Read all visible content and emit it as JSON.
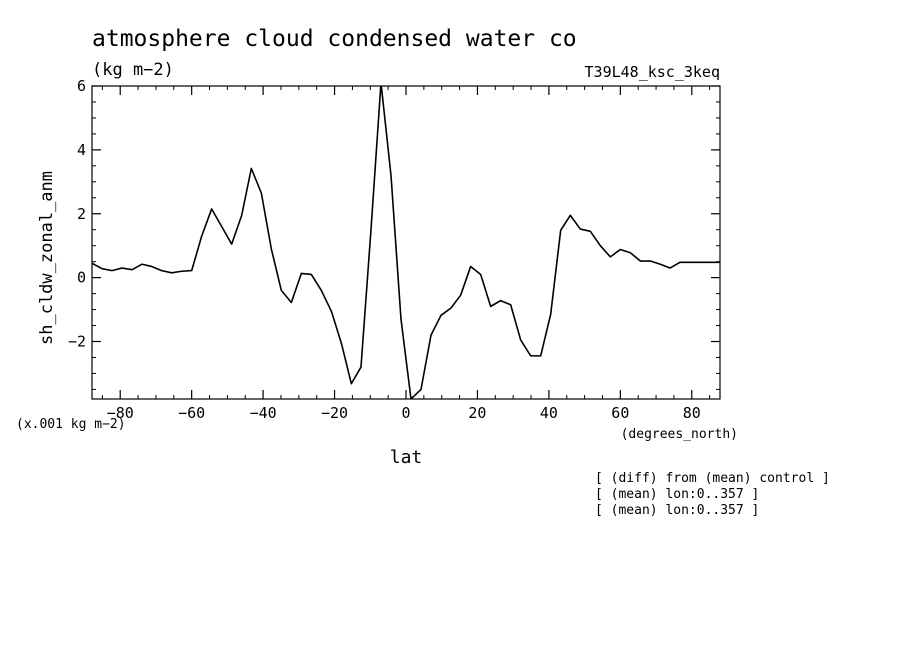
{
  "header": {
    "title": "atmosphere cloud condensed water co",
    "units": "(kg m−2)",
    "experiment": "T39L48_ksc_3keq"
  },
  "notes": [
    "[ (diff) from (mean) control ]",
    "[ (mean) lon:0..357 ]",
    "[ (mean) lon:0..357 ]"
  ],
  "chart_data": {
    "type": "line",
    "title": "atmosphere cloud condensed water co",
    "xlabel": "lat",
    "xunits": "(degrees_north)",
    "ylabel": "sh_cldw_zonal_anm",
    "yscale_note": "(x.001 kg m−2)",
    "xlim": [
      -87.9,
      87.9
    ],
    "ylim": [
      -3.8,
      6.0
    ],
    "xticks": [
      -80,
      -60,
      -40,
      -20,
      0,
      20,
      40,
      60,
      80
    ],
    "xtick_labels": [
      "−80",
      "−60",
      "−40",
      "−20",
      "0",
      "20",
      "40",
      "60",
      "80"
    ],
    "yticks": [
      -2,
      0,
      2,
      4,
      6
    ],
    "ytick_labels": [
      "−2",
      "0",
      "2",
      "4",
      "6"
    ],
    "grid": false,
    "series": [
      {
        "color": "#000000",
        "x": [
          -87.9,
          -85.1,
          -82.3,
          -79.5,
          -76.7,
          -73.9,
          -71.2,
          -68.4,
          -65.6,
          -62.8,
          -60.0,
          -57.2,
          -54.4,
          -51.6,
          -48.8,
          -46.0,
          -43.3,
          -40.5,
          -37.7,
          -34.9,
          -32.1,
          -29.3,
          -26.5,
          -23.7,
          -20.9,
          -18.1,
          -15.3,
          -12.6,
          -9.8,
          -7.0,
          -4.2,
          -1.4,
          1.4,
          4.2,
          7.0,
          9.8,
          12.6,
          15.3,
          18.1,
          20.9,
          23.7,
          26.5,
          29.3,
          32.1,
          34.9,
          37.7,
          40.5,
          43.3,
          46.0,
          48.8,
          51.6,
          54.4,
          57.2,
          60.0,
          62.8,
          65.6,
          68.4,
          71.2,
          73.9,
          76.7,
          79.5,
          82.3,
          85.1,
          87.9
        ],
        "y": [
          0.45,
          0.28,
          0.22,
          0.3,
          0.25,
          0.42,
          0.35,
          0.22,
          0.15,
          0.2,
          0.22,
          1.3,
          2.15,
          1.6,
          1.05,
          1.95,
          3.42,
          2.65,
          0.9,
          -0.4,
          -0.78,
          0.13,
          0.1,
          -0.4,
          -1.05,
          -2.05,
          -3.32,
          -2.8,
          1.5,
          6.1,
          3.2,
          -1.3,
          -3.8,
          -3.5,
          -1.8,
          -1.18,
          -0.95,
          -0.55,
          0.35,
          0.1,
          -0.9,
          -0.72,
          -0.85,
          -1.95,
          -2.45,
          -2.45,
          -1.15,
          1.48,
          1.95,
          1.52,
          1.45,
          1.0,
          0.65,
          0.88,
          0.78,
          0.52,
          0.52,
          0.42,
          0.3,
          0.48,
          0.48,
          0.48,
          0.48,
          0.48
        ]
      }
    ]
  }
}
